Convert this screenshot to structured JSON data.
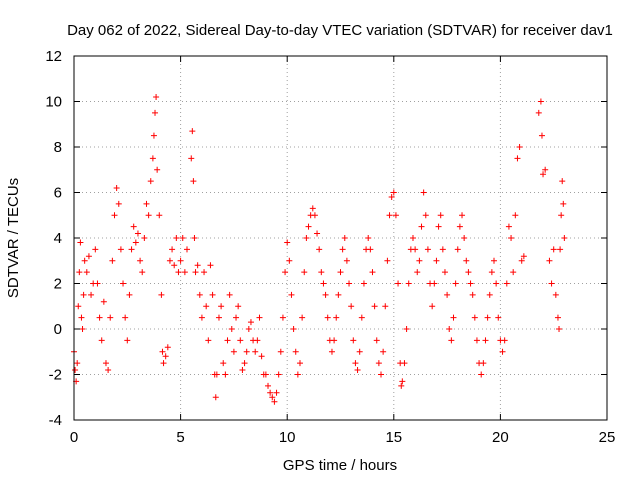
{
  "chart_data": {
    "type": "scatter",
    "title": "Day 062 of 2022, Sidereal Day-to-day VTEC variation (SDTVAR) for receiver dav1",
    "xlabel": "GPS time / hours",
    "ylabel": "SDTVAR / TECUs",
    "xlim": [
      0,
      25
    ],
    "ylim": [
      -4,
      12
    ],
    "x_ticks": [
      0,
      5,
      10,
      15,
      20,
      25
    ],
    "y_ticks": [
      -4,
      -2,
      0,
      2,
      4,
      6,
      8,
      10,
      12
    ],
    "grid": true,
    "marker": "+",
    "colors": {
      "series": "#ff0000",
      "grid": "#a0a0a0",
      "axis": "#000000"
    },
    "series": [
      {
        "name": "dav1",
        "points": [
          [
            0.0,
            -1.0
          ],
          [
            0.05,
            -1.8
          ],
          [
            0.1,
            -2.3
          ],
          [
            0.15,
            -1.5
          ],
          [
            0.2,
            1.0
          ],
          [
            0.25,
            2.5
          ],
          [
            0.3,
            3.8
          ],
          [
            0.35,
            0.5
          ],
          [
            0.4,
            0.0
          ],
          [
            0.45,
            1.5
          ],
          [
            0.5,
            3.0
          ],
          [
            0.6,
            2.5
          ],
          [
            0.7,
            3.2
          ],
          [
            0.8,
            1.5
          ],
          [
            0.9,
            2.0
          ],
          [
            1.0,
            3.5
          ],
          [
            1.1,
            2.0
          ],
          [
            1.2,
            0.5
          ],
          [
            1.3,
            -0.5
          ],
          [
            1.4,
            1.2
          ],
          [
            1.5,
            -1.5
          ],
          [
            1.6,
            -1.8
          ],
          [
            1.7,
            0.5
          ],
          [
            1.8,
            3.0
          ],
          [
            1.9,
            5.0
          ],
          [
            2.0,
            6.2
          ],
          [
            2.1,
            5.5
          ],
          [
            2.2,
            3.5
          ],
          [
            2.3,
            2.0
          ],
          [
            2.4,
            0.5
          ],
          [
            2.5,
            -0.5
          ],
          [
            2.6,
            1.5
          ],
          [
            2.7,
            3.5
          ],
          [
            2.8,
            4.5
          ],
          [
            2.9,
            3.8
          ],
          [
            3.0,
            4.2
          ],
          [
            3.1,
            3.0
          ],
          [
            3.2,
            2.5
          ],
          [
            3.3,
            4.0
          ],
          [
            3.4,
            5.5
          ],
          [
            3.5,
            5.0
          ],
          [
            3.6,
            6.5
          ],
          [
            3.7,
            7.5
          ],
          [
            3.75,
            8.5
          ],
          [
            3.8,
            9.5
          ],
          [
            3.85,
            10.2
          ],
          [
            3.9,
            7.0
          ],
          [
            4.0,
            5.0
          ],
          [
            4.1,
            1.5
          ],
          [
            4.15,
            -1.0
          ],
          [
            4.2,
            -1.5
          ],
          [
            4.3,
            -1.2
          ],
          [
            4.4,
            -0.8
          ],
          [
            4.5,
            3.0
          ],
          [
            4.6,
            3.5
          ],
          [
            4.7,
            2.8
          ],
          [
            4.8,
            4.0
          ],
          [
            4.9,
            2.5
          ],
          [
            5.0,
            3.0
          ],
          [
            5.1,
            4.0
          ],
          [
            5.2,
            2.5
          ],
          [
            5.3,
            3.5
          ],
          [
            5.5,
            7.5
          ],
          [
            5.55,
            8.7
          ],
          [
            5.6,
            6.5
          ],
          [
            5.65,
            4.0
          ],
          [
            5.7,
            2.5
          ],
          [
            5.8,
            2.8
          ],
          [
            5.9,
            1.5
          ],
          [
            6.0,
            0.5
          ],
          [
            6.1,
            2.5
          ],
          [
            6.2,
            1.0
          ],
          [
            6.3,
            -0.5
          ],
          [
            6.4,
            2.8
          ],
          [
            6.5,
            1.5
          ],
          [
            6.6,
            -2.0
          ],
          [
            6.65,
            -3.0
          ],
          [
            6.7,
            -2.0
          ],
          [
            6.8,
            0.5
          ],
          [
            6.9,
            1.0
          ],
          [
            7.0,
            -1.5
          ],
          [
            7.1,
            -2.0
          ],
          [
            7.2,
            -0.5
          ],
          [
            7.3,
            1.5
          ],
          [
            7.4,
            0.0
          ],
          [
            7.5,
            -1.0
          ],
          [
            7.6,
            0.5
          ],
          [
            7.7,
            1.0
          ],
          [
            7.8,
            -0.5
          ],
          [
            7.9,
            -1.8
          ],
          [
            8.0,
            -1.5
          ],
          [
            8.1,
            -1.0
          ],
          [
            8.2,
            0.0
          ],
          [
            8.3,
            0.3
          ],
          [
            8.4,
            -0.5
          ],
          [
            8.5,
            -1.0
          ],
          [
            8.6,
            -0.5
          ],
          [
            8.7,
            0.5
          ],
          [
            8.8,
            -1.2
          ],
          [
            8.9,
            -2.0
          ],
          [
            9.0,
            -2.0
          ],
          [
            9.1,
            -2.5
          ],
          [
            9.2,
            -2.8
          ],
          [
            9.3,
            -3.0
          ],
          [
            9.4,
            -3.2
          ],
          [
            9.5,
            -2.8
          ],
          [
            9.6,
            -2.0
          ],
          [
            9.7,
            -1.0
          ],
          [
            9.8,
            0.5
          ],
          [
            9.9,
            2.5
          ],
          [
            10.0,
            3.8
          ],
          [
            10.1,
            3.0
          ],
          [
            10.2,
            1.5
          ],
          [
            10.3,
            0.0
          ],
          [
            10.4,
            -1.0
          ],
          [
            10.5,
            -2.0
          ],
          [
            10.6,
            -1.5
          ],
          [
            10.7,
            0.5
          ],
          [
            10.8,
            2.5
          ],
          [
            10.9,
            4.0
          ],
          [
            11.0,
            4.5
          ],
          [
            11.1,
            5.0
          ],
          [
            11.2,
            5.3
          ],
          [
            11.3,
            5.0
          ],
          [
            11.4,
            4.2
          ],
          [
            11.5,
            3.5
          ],
          [
            11.6,
            2.5
          ],
          [
            11.7,
            2.0
          ],
          [
            11.8,
            1.5
          ],
          [
            11.9,
            0.5
          ],
          [
            12.0,
            -0.5
          ],
          [
            12.1,
            -1.0
          ],
          [
            12.2,
            -0.5
          ],
          [
            12.3,
            0.5
          ],
          [
            12.4,
            1.5
          ],
          [
            12.5,
            2.5
          ],
          [
            12.6,
            3.5
          ],
          [
            12.7,
            4.0
          ],
          [
            12.8,
            3.0
          ],
          [
            12.9,
            2.0
          ],
          [
            13.0,
            1.0
          ],
          [
            13.1,
            -0.5
          ],
          [
            13.2,
            -1.5
          ],
          [
            13.3,
            -1.8
          ],
          [
            13.4,
            -1.0
          ],
          [
            13.5,
            0.5
          ],
          [
            13.6,
            2.0
          ],
          [
            13.7,
            3.5
          ],
          [
            13.8,
            4.0
          ],
          [
            13.9,
            3.5
          ],
          [
            14.0,
            2.5
          ],
          [
            14.1,
            1.0
          ],
          [
            14.2,
            -0.5
          ],
          [
            14.3,
            -1.5
          ],
          [
            14.4,
            -2.0
          ],
          [
            14.5,
            -1.0
          ],
          [
            14.6,
            1.0
          ],
          [
            14.7,
            3.0
          ],
          [
            14.8,
            5.0
          ],
          [
            14.9,
            5.8
          ],
          [
            15.0,
            6.0
          ],
          [
            15.1,
            5.0
          ],
          [
            15.2,
            2.0
          ],
          [
            15.3,
            -1.5
          ],
          [
            15.35,
            -2.5
          ],
          [
            15.4,
            -2.3
          ],
          [
            15.5,
            -1.5
          ],
          [
            15.6,
            0.0
          ],
          [
            15.7,
            2.0
          ],
          [
            15.8,
            3.5
          ],
          [
            15.9,
            4.0
          ],
          [
            16.0,
            3.5
          ],
          [
            16.1,
            2.5
          ],
          [
            16.2,
            3.0
          ],
          [
            16.3,
            4.5
          ],
          [
            16.4,
            6.0
          ],
          [
            16.5,
            5.0
          ],
          [
            16.6,
            3.5
          ],
          [
            16.7,
            2.0
          ],
          [
            16.8,
            1.0
          ],
          [
            16.9,
            2.0
          ],
          [
            17.0,
            3.0
          ],
          [
            17.1,
            4.5
          ],
          [
            17.2,
            5.0
          ],
          [
            17.3,
            3.5
          ],
          [
            17.4,
            2.5
          ],
          [
            17.5,
            1.5
          ],
          [
            17.6,
            0.0
          ],
          [
            17.7,
            -0.5
          ],
          [
            17.8,
            0.5
          ],
          [
            17.9,
            2.0
          ],
          [
            18.0,
            3.5
          ],
          [
            18.1,
            4.5
          ],
          [
            18.2,
            5.0
          ],
          [
            18.3,
            4.0
          ],
          [
            18.4,
            3.0
          ],
          [
            18.5,
            2.5
          ],
          [
            18.6,
            2.0
          ],
          [
            18.7,
            1.5
          ],
          [
            18.8,
            0.5
          ],
          [
            18.9,
            -0.5
          ],
          [
            19.0,
            -1.5
          ],
          [
            19.1,
            -2.0
          ],
          [
            19.2,
            -1.5
          ],
          [
            19.3,
            -0.5
          ],
          [
            19.4,
            0.5
          ],
          [
            19.5,
            1.5
          ],
          [
            19.6,
            2.5
          ],
          [
            19.7,
            3.0
          ],
          [
            19.8,
            2.0
          ],
          [
            19.9,
            0.5
          ],
          [
            20.0,
            -0.5
          ],
          [
            20.1,
            -1.0
          ],
          [
            20.2,
            -0.5
          ],
          [
            20.3,
            2.0
          ],
          [
            20.4,
            4.5
          ],
          [
            20.5,
            4.0
          ],
          [
            20.6,
            2.5
          ],
          [
            20.7,
            5.0
          ],
          [
            20.8,
            7.5
          ],
          [
            20.9,
            8.0
          ],
          [
            21.0,
            3.0
          ],
          [
            21.1,
            3.2
          ],
          [
            21.8,
            9.5
          ],
          [
            21.9,
            10.0
          ],
          [
            21.95,
            8.5
          ],
          [
            22.0,
            6.8
          ],
          [
            22.1,
            7.0
          ],
          [
            22.3,
            3.0
          ],
          [
            22.4,
            2.0
          ],
          [
            22.5,
            3.5
          ],
          [
            22.6,
            1.5
          ],
          [
            22.7,
            0.5
          ],
          [
            22.75,
            0.0
          ],
          [
            22.8,
            3.5
          ],
          [
            22.85,
            5.0
          ],
          [
            22.9,
            6.5
          ],
          [
            22.95,
            5.5
          ],
          [
            23.0,
            4.0
          ]
        ]
      }
    ]
  }
}
